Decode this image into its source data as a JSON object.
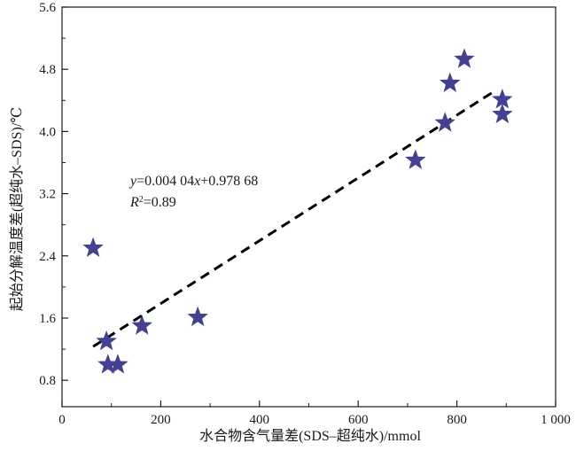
{
  "chart_data": {
    "type": "scatter",
    "xlabel": "水合物含气量差(SDS–超纯水)/mmol",
    "ylabel": "起始分解温度差(超纯水–SDS)/℃",
    "xlim": [
      0,
      1000
    ],
    "ylim": [
      0.46,
      5.6
    ],
    "xticks": [
      0,
      200,
      400,
      600,
      800,
      1000
    ],
    "xtick_labels": [
      "0",
      "200",
      "400",
      "600",
      "800",
      "1 000"
    ],
    "yticks": [
      0.8,
      1.6,
      2.4,
      3.2,
      4.0,
      4.8,
      5.6
    ],
    "ytick_labels": [
      "0.8",
      "1.6",
      "2.4",
      "3.2",
      "4.0",
      "4.8",
      "5.6"
    ],
    "grid": false,
    "legend": "none",
    "series": [
      {
        "marker": "star",
        "color": "#434190",
        "points": [
          [
            63,
            2.5
          ],
          [
            90,
            1.3
          ],
          [
            93,
            1.0
          ],
          [
            113,
            1.0
          ],
          [
            162,
            1.5
          ],
          [
            275,
            1.61
          ],
          [
            716,
            3.63
          ],
          [
            776,
            4.11
          ],
          [
            786,
            4.62
          ],
          [
            815,
            4.93
          ],
          [
            892,
            4.41
          ],
          [
            892,
            4.22
          ]
        ]
      }
    ],
    "fit": {
      "slope": 0.00404,
      "intercept": 0.97868,
      "x_range": [
        63,
        872
      ],
      "style": "dashed",
      "color": "#000000"
    },
    "annotations": [
      {
        "parts": [
          {
            "text": "y",
            "italic": true
          },
          {
            "text": "=0.004 04",
            "italic": false
          },
          {
            "text": "x",
            "italic": true
          },
          {
            "text": "+0.978 68",
            "italic": false
          }
        ]
      },
      {
        "parts": [
          {
            "text": "R",
            "italic": true
          },
          {
            "text": "2",
            "italic": false,
            "sup": true
          },
          {
            "text": "=0.89",
            "italic": false
          }
        ]
      }
    ]
  }
}
